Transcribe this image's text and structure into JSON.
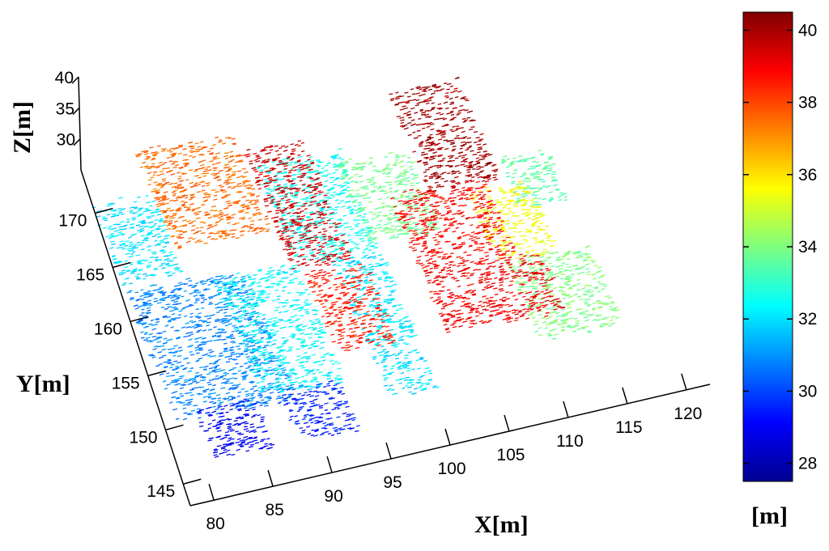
{
  "chart_data": {
    "type": "scatter",
    "subtype": "3d-point-cloud",
    "title": "",
    "xlabel": "X[m]",
    "ylabel": "Y[m]",
    "zlabel": "Z[m]",
    "colorbar_label": "[m]",
    "colormap": "jet",
    "xlim": [
      78,
      122
    ],
    "ylim": [
      143,
      174
    ],
    "zlim": [
      27.5,
      40.5
    ],
    "x_ticks": [
      "80",
      "85",
      "90",
      "95",
      "100",
      "105",
      "110",
      "115",
      "120"
    ],
    "y_ticks": [
      "145",
      "150",
      "155",
      "160",
      "165",
      "170"
    ],
    "z_ticks": [
      "30",
      "35",
      "40"
    ],
    "colorbar_ticks": [
      "28",
      "30",
      "32",
      "34",
      "36",
      "38",
      "40"
    ],
    "colorbar_range": [
      27.5,
      40.5
    ],
    "grid": false,
    "regions": [
      {
        "x": [
          79,
          84
        ],
        "y": [
          163,
          171
        ],
        "z": 32.0
      },
      {
        "x": [
          79,
          89
        ],
        "y": [
          150,
          163
        ],
        "z": 30.8
      },
      {
        "x": [
          81,
          86
        ],
        "y": [
          147,
          152
        ],
        "z": 29.0
      },
      {
        "x": [
          83,
          91
        ],
        "y": [
          162,
          172
        ],
        "z": 37.5
      },
      {
        "x": [
          86,
          93
        ],
        "y": [
          150,
          162
        ],
        "z": 32.3
      },
      {
        "x": [
          88,
          93
        ],
        "y": [
          147,
          152
        ],
        "z": 29.5
      },
      {
        "x": [
          91,
          96
        ],
        "y": [
          157,
          169
        ],
        "z": 39.5
      },
      {
        "x": [
          92,
          97
        ],
        "y": [
          149,
          157
        ],
        "z": 38.5
      },
      {
        "x": [
          93,
          100
        ],
        "y": [
          162,
          172
        ],
        "z": 32.5
      },
      {
        "x": [
          96,
          100
        ],
        "y": [
          148,
          162
        ],
        "z": 32.0
      },
      {
        "x": [
          99,
          105
        ],
        "y": [
          162,
          170
        ],
        "z": 33.8
      },
      {
        "x": [
          101,
          109
        ],
        "y": [
          155,
          163
        ],
        "z": 38.8
      },
      {
        "x": [
          104,
          110
        ],
        "y": [
          162,
          172
        ],
        "z": 40.0
      },
      {
        "x": [
          101,
          111
        ],
        "y": [
          149,
          155
        ],
        "z": 39.0
      },
      {
        "x": [
          108,
          113
        ],
        "y": [
          157,
          164
        ],
        "z": 35.5
      },
      {
        "x": [
          109,
          116
        ],
        "y": [
          150,
          158
        ],
        "z": 34.0
      },
      {
        "x": [
          112,
          116
        ],
        "y": [
          163,
          168
        ],
        "z": 33.5
      }
    ],
    "colors": {
      "point_cloud_colormap": [
        "#00008f",
        "#0000ff",
        "#00ffff",
        "#ffff00",
        "#ff0000",
        "#800000"
      ],
      "axis": "#000000"
    }
  }
}
